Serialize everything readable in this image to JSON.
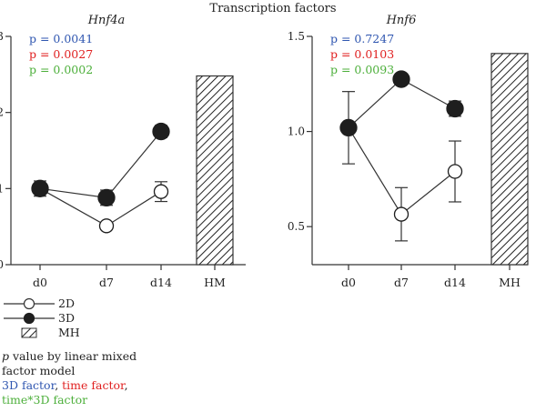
{
  "figure_title": "Transcription factors",
  "colors": {
    "factor_3d": "#2f56b0",
    "factor_time": "#e02020",
    "factor_interaction": "#4caf3a",
    "axis": "#333333"
  },
  "legend": {
    "items": [
      {
        "label": "2D",
        "marker": "open-circle"
      },
      {
        "label": "3D",
        "marker": "filled-circle"
      },
      {
        "label": "MH",
        "marker": "hatched-box"
      }
    ],
    "note_lines": [
      "p value by linear mixed",
      "factor model"
    ],
    "note_p": "p",
    "note_p_rest": " value by linear mixed",
    "factor_3d": "3D factor",
    "sep1": ", ",
    "factor_time": "time factor",
    "sep2": ",",
    "factor_interaction": "time*3D factor"
  },
  "chart_data": [
    {
      "type": "line",
      "title": "Hnf4a",
      "categories": [
        "d0",
        "d7",
        "d14",
        "HM"
      ],
      "ylim": [
        0,
        3
      ],
      "yticks": [
        0,
        1,
        2,
        3
      ],
      "grid": false,
      "pvalues": [
        {
          "label": "p = 0.0041",
          "factor": "3D"
        },
        {
          "label": "p = 0.0027",
          "factor": "time"
        },
        {
          "label": "p = 0.0002",
          "factor": "time*3D"
        }
      ],
      "series": [
        {
          "name": "2D",
          "marker": "open-circle",
          "x": [
            "d0",
            "d7",
            "d14"
          ],
          "values": [
            1.0,
            0.51,
            0.96
          ],
          "err": [
            0.07,
            0.04,
            0.13
          ]
        },
        {
          "name": "3D",
          "marker": "filled-circle",
          "x": [
            "d0",
            "d7",
            "d14"
          ],
          "values": [
            1.0,
            0.88,
            1.75
          ],
          "err": [
            0.1,
            0.1,
            0.08
          ]
        }
      ],
      "reference_bar": {
        "category": "HM",
        "value": 2.48,
        "pattern": "hatched"
      }
    },
    {
      "type": "line",
      "title": "Hnf6",
      "categories": [
        "d0",
        "d7",
        "d14",
        "MH"
      ],
      "ylim": [
        0.3,
        1.5
      ],
      "yticks": [
        0.5,
        1.0,
        1.5
      ],
      "ytick_labels": [
        "0.5",
        "1.0",
        "1.5"
      ],
      "grid": false,
      "pvalues": [
        {
          "label": "p = 0.7247",
          "factor": "3D"
        },
        {
          "label": "p = 0.0103",
          "factor": "time"
        },
        {
          "label": "p = 0.0093",
          "factor": "time*3D"
        }
      ],
      "series": [
        {
          "name": "2D",
          "marker": "open-circle",
          "x": [
            "d0",
            "d7",
            "d14"
          ],
          "values": [
            1.02,
            0.565,
            0.79
          ],
          "err": [
            0.19,
            0.14,
            0.16
          ]
        },
        {
          "name": "3D",
          "marker": "filled-circle",
          "x": [
            "d0",
            "d7",
            "d14"
          ],
          "values": [
            1.02,
            1.275,
            1.12
          ],
          "err": [
            0.02,
            0.0,
            0.04
          ]
        }
      ],
      "reference_bar": {
        "category": "MH",
        "value": 1.41,
        "pattern": "hatched"
      }
    }
  ]
}
